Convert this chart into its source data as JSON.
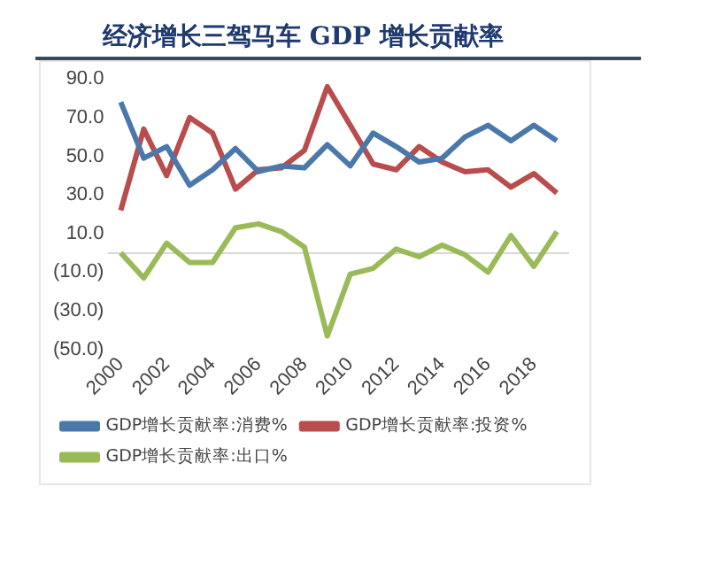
{
  "chart_data": {
    "type": "line",
    "title": "经济增长三驾马车 GDP 增长贡献率",
    "categories": [
      "2000",
      null,
      "2002",
      null,
      "2004",
      null,
      "2006",
      null,
      "2008",
      null,
      "2010",
      null,
      "2012",
      null,
      "2014",
      null,
      "2016",
      null,
      "2018",
      null
    ],
    "series": [
      {
        "name": "GDP增长贡献率:消费%",
        "color": "#4a78aa",
        "values": [
          78,
          49,
          55,
          35,
          43,
          54,
          42,
          45,
          44,
          56,
          45,
          62,
          55,
          47,
          49,
          60,
          66,
          58,
          66,
          58
        ]
      },
      {
        "name": "GDP增长贡献率:投资%",
        "color": "#b94c4c",
        "values": [
          22,
          64,
          40,
          70,
          62,
          33,
          43,
          44,
          53,
          86,
          66,
          46,
          43,
          55,
          47,
          42,
          43,
          34,
          41,
          31
        ]
      },
      {
        "name": "GDP增长贡献率:出口%",
        "color": "#9aba58",
        "values": [
          0,
          -13,
          5,
          -5,
          -5,
          13,
          15,
          11,
          3,
          -43,
          -11,
          -8,
          2,
          -2,
          4,
          -1,
          -10,
          9,
          -7,
          11
        ]
      }
    ],
    "ylim": [
      -50,
      90
    ],
    "yticks": [
      {
        "value": 90,
        "label": "90.0"
      },
      {
        "value": 70,
        "label": "70.0"
      },
      {
        "value": 50,
        "label": "50.0"
      },
      {
        "value": 30,
        "label": "30.0"
      },
      {
        "value": 10,
        "label": "10.0"
      },
      {
        "value": -10,
        "label": "(10.0)"
      },
      {
        "value": -30,
        "label": "(30.0)"
      },
      {
        "value": -50,
        "label": "(50.0)"
      }
    ],
    "grid": false,
    "legend": "bottom",
    "marker": "none",
    "line_style": "solid"
  }
}
